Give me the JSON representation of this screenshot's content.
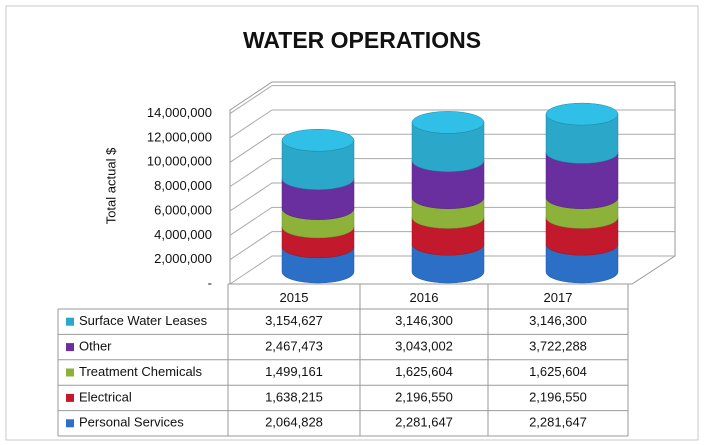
{
  "chart_data": {
    "type": "stacked-cylinder",
    "title": "WATER OPERATIONS",
    "y_label": "Total actual $",
    "categories": [
      "2015",
      "2016",
      "2017"
    ],
    "series": [
      {
        "name": "Personal Services",
        "color": "#2b6fc7",
        "values": [
          2064828,
          2281647,
          2281647
        ],
        "value_labels": [
          "2,064,828",
          "2,281,647",
          "2,281,647"
        ]
      },
      {
        "name": "Electrical",
        "color": "#c21a2c",
        "values": [
          1638215,
          2196550,
          2196550
        ],
        "value_labels": [
          "1,638,215",
          "2,196,550",
          "2,196,550"
        ]
      },
      {
        "name": "Treatment Chemicals",
        "color": "#8cb23a",
        "values": [
          1499161,
          1625604,
          1625604
        ],
        "value_labels": [
          "1,499,161",
          "1,625,604",
          "1,625,604"
        ]
      },
      {
        "name": "Other",
        "color": "#6a2f9e",
        "values": [
          2467473,
          3043002,
          3722288
        ],
        "value_labels": [
          "2,467,473",
          "3,043,002",
          "3,722,288"
        ]
      },
      {
        "name": "Surface Water Leases",
        "color": "#2aa7c9",
        "values": [
          3154627,
          3146300,
          3146300
        ],
        "value_labels": [
          "3,154,627",
          "3,146,300",
          "3,146,300"
        ]
      }
    ],
    "ylim": [
      0,
      14000000
    ],
    "yticks": [
      {
        "value": 0,
        "label": "-"
      },
      {
        "value": 2000000,
        "label": "2,000,000"
      },
      {
        "value": 4000000,
        "label": "4,000,000"
      },
      {
        "value": 6000000,
        "label": "6,000,000"
      },
      {
        "value": 8000000,
        "label": "8,000,000"
      },
      {
        "value": 10000000,
        "label": "10,000,000"
      },
      {
        "value": 12000000,
        "label": "12,000,000"
      },
      {
        "value": 14000000,
        "label": "14,000,000"
      }
    ],
    "grid": true,
    "legend": "table"
  }
}
